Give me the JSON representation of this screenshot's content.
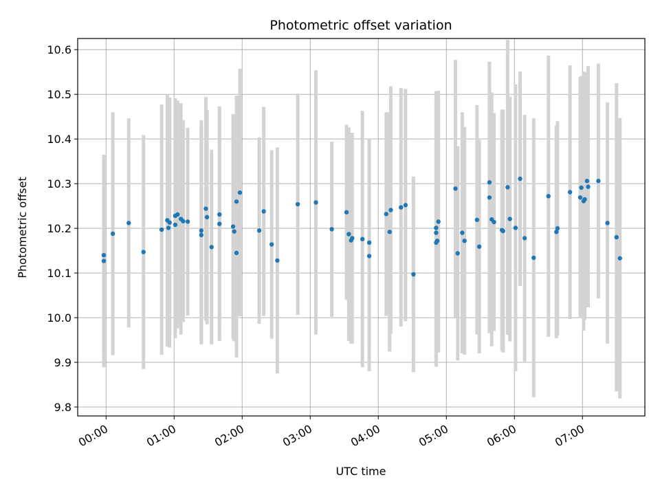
{
  "chart_data": {
    "type": "scatter",
    "title": "Photometric offset variation",
    "xlabel": "UTC time",
    "ylabel": "Photometric offset",
    "grid": true,
    "colors": {
      "point": "#1f77b4",
      "errorbar": "#d3d3d3",
      "grid": "#b0b0b0"
    },
    "xlim": [
      "-0:25",
      "7:55"
    ],
    "ylim": [
      9.78,
      10.625
    ],
    "x_ticks": [
      "00:00",
      "01:00",
      "02:00",
      "03:00",
      "04:00",
      "05:00",
      "06:00",
      "07:00"
    ],
    "y_ticks": [
      "9.8",
      "9.9",
      "10.0",
      "10.1",
      "10.2",
      "10.3",
      "10.4",
      "10.5",
      "10.6"
    ],
    "series": [
      {
        "time": [
          "-0:02",
          "-0:02",
          "0:06",
          "0:20",
          "0:33",
          "0:49",
          "0:54",
          "0:55",
          "0:56",
          "1:01",
          "1:01",
          "1:03",
          "1:06",
          "1:08",
          "1:12",
          "1:24",
          "1:24",
          "1:28",
          "1:29",
          "1:33",
          "1:40",
          "1:40",
          "1:52",
          "1:53",
          "1:55",
          "1:55",
          "1:58",
          "2:15",
          "2:19",
          "2:26",
          "2:31",
          "2:49",
          "3:05",
          "3:19",
          "3:32",
          "3:34",
          "3:36",
          "3:37",
          "3:46",
          "3:52",
          "3:52",
          "4:07",
          "4:10",
          "4:11",
          "4:20",
          "4:24",
          "4:31",
          "4:51",
          "4:51",
          "4:51",
          "4:52",
          "4:53",
          "5:08",
          "5:10",
          "5:14",
          "5:16",
          "5:27",
          "5:29",
          "5:38",
          "5:38",
          "5:40",
          "5:42",
          "5:49",
          "5:50",
          "5:54",
          "5:56",
          "6:01",
          "6:05",
          "6:09",
          "6:17",
          "6:30",
          "6:37",
          "6:38",
          "6:49",
          "6:58",
          "6:59",
          "7:01",
          "7:02",
          "7:04",
          "7:05",
          "7:14",
          "7:22",
          "7:30",
          "7:33"
        ],
        "y": [
          10.127,
          10.14,
          10.188,
          10.212,
          10.147,
          10.197,
          10.218,
          10.201,
          10.213,
          10.228,
          10.208,
          10.231,
          10.221,
          10.216,
          10.215,
          10.185,
          10.195,
          10.244,
          10.225,
          10.158,
          10.231,
          10.21,
          10.204,
          10.193,
          10.26,
          10.145,
          10.28,
          10.195,
          10.238,
          10.164,
          10.128,
          10.254,
          10.258,
          10.198,
          10.236,
          10.187,
          10.173,
          10.178,
          10.176,
          10.168,
          10.138,
          10.232,
          10.192,
          10.241,
          10.247,
          10.252,
          10.097,
          10.168,
          10.19,
          10.201,
          10.172,
          10.215,
          10.289,
          10.144,
          10.19,
          10.172,
          10.219,
          10.159,
          10.269,
          10.303,
          10.22,
          10.214,
          10.196,
          10.194,
          10.292,
          10.221,
          10.201,
          10.311,
          10.178,
          10.134,
          10.272,
          10.192,
          10.2,
          10.281,
          10.269,
          10.291,
          10.261,
          10.265,
          10.306,
          10.293,
          10.306,
          10.212,
          10.18,
          10.133
        ],
        "err": [
          0.238,
          0.224,
          0.272,
          0.234,
          0.262,
          0.28,
          0.282,
          0.266,
          0.28,
          0.263,
          0.254,
          0.255,
          0.259,
          0.226,
          0.21,
          0.245,
          0.247,
          0.25,
          0.24,
          0.218,
          0.242,
          0.262,
          0.252,
          0.246,
          0.237,
          0.234,
          0.277,
          0.209,
          0.234,
          0.211,
          0.253,
          0.248,
          0.296,
          0.196,
          0.196,
          0.239,
          0.231,
          0.236,
          0.287,
          0.232,
          0.258,
          0.228,
          0.268,
          0.277,
          0.267,
          0.26,
          0.219,
          0.278,
          0.289,
          0.306,
          0.249,
          0.293,
          0.288,
          0.24,
          0.27,
          0.255,
          0.257,
          0.239,
          0.304,
          0.27,
          0.284,
          0.244,
          0.27,
          0.272,
          0.33,
          0.274,
          0.321,
          0.24,
          0.276,
          0.312,
          0.315,
          0.238,
          0.24,
          0.284,
          0.27,
          0.25,
          0.29,
          0.27,
          0.244,
          0.27,
          0.263,
          0.27,
          0.345,
          0.314
        ]
      }
    ]
  }
}
